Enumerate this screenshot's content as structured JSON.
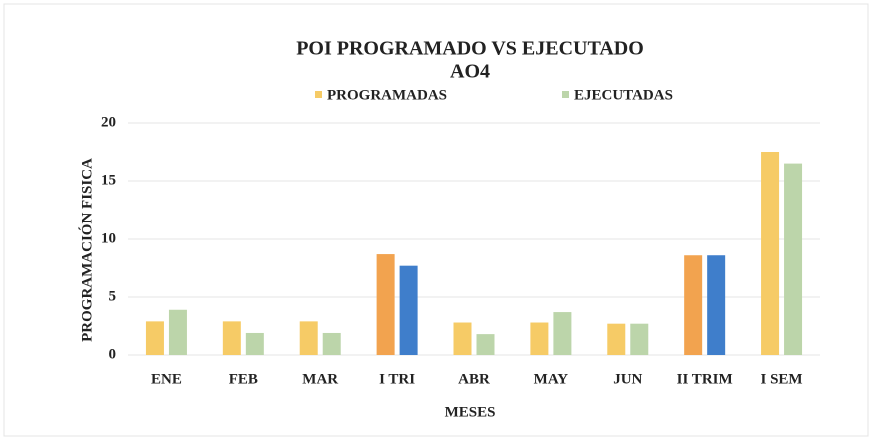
{
  "chart_data": {
    "type": "bar",
    "title": "POI PROGRAMADO VS EJECUTADO",
    "subtitle": "AO4",
    "x_label": "MESES",
    "y_label": "PROGRAMACIÓN FISICA",
    "categories": [
      "ENE",
      "FEB",
      "MAR",
      "I TRI",
      "ABR",
      "MAY",
      "JUN",
      "II TRIM",
      "I SEM"
    ],
    "series": [
      {
        "name": "PROGRAMADAS",
        "color": "#f6cb66",
        "colors": [
          "#f6cb66",
          "#f6cb66",
          "#f6cb66",
          "#f2a34f",
          "#f6cb66",
          "#f6cb66",
          "#f6cb66",
          "#f2a34f",
          "#f6cb66"
        ],
        "values": [
          2.9,
          2.9,
          2.9,
          8.7,
          2.8,
          2.8,
          2.7,
          8.6,
          17.5
        ]
      },
      {
        "name": "EJECUTADAS",
        "color": "#bcd5aa",
        "colors": [
          "#bcd5aa",
          "#bcd5aa",
          "#bcd5aa",
          "#3f7ecb",
          "#bcd5aa",
          "#bcd5aa",
          "#bcd5aa",
          "#3f7ecb",
          "#bcd5aa"
        ],
        "values": [
          3.9,
          1.9,
          1.9,
          7.7,
          1.8,
          3.7,
          2.7,
          8.6,
          16.5
        ]
      }
    ],
    "ylim": [
      0,
      20
    ],
    "yticks": [
      0,
      5,
      10,
      15,
      20
    ],
    "grid": true,
    "legend": "top"
  }
}
